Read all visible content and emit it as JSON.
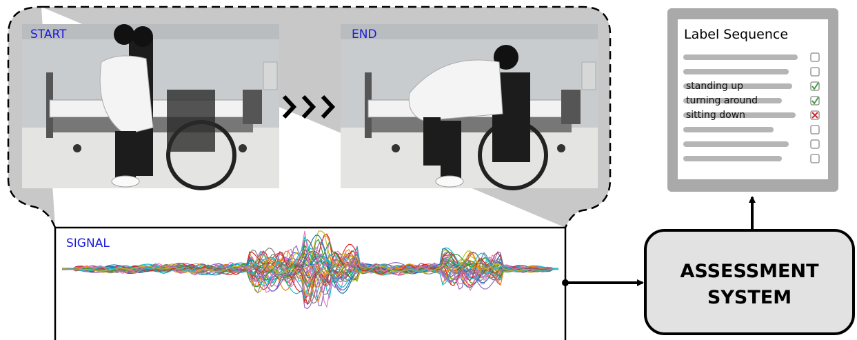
{
  "photos": {
    "start_label": "START",
    "end_label": "END"
  },
  "signal": {
    "label": "SIGNAL"
  },
  "assessment": {
    "line1": "ASSESSMENT",
    "line2": "SYSTEM"
  },
  "label_sequence": {
    "title": "Label Sequence",
    "items": [
      "standing up",
      "turning around",
      "sitting down"
    ]
  }
}
